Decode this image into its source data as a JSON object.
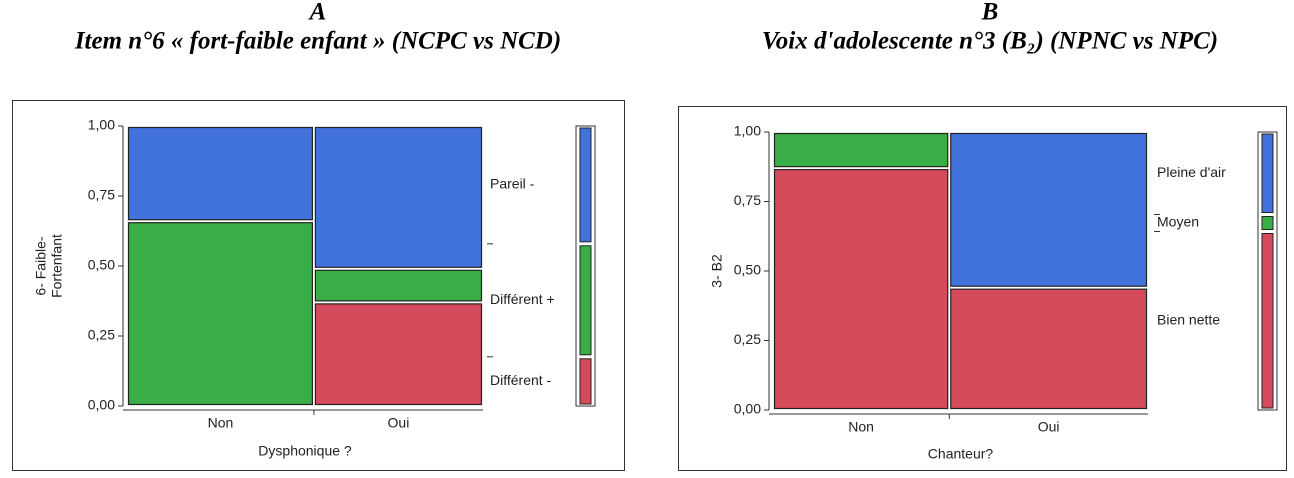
{
  "chart_data": [
    {
      "type": "mosaic",
      "letter": "A",
      "title": "Item n°6 « fort-faible enfant »   (NCPC vs NCD)",
      "x_label": "Dysphonique ?",
      "y_label": [
        "6- Faible-",
        "Fortenfant"
      ],
      "categories": [
        "Non",
        "Oui"
      ],
      "column_shares": [
        0.525,
        0.475
      ],
      "series": [
        {
          "name": "Différent -",
          "color": "#d54b5b",
          "values": [
            0,
            0.37
          ]
        },
        {
          "name": "Différent +",
          "color": "#3aae46",
          "values": [
            0.66,
            0.12
          ]
        },
        {
          "name": "Pareil -",
          "color": "#4272dc",
          "values": [
            0.34,
            0.51
          ]
        }
      ],
      "ylim": [
        0,
        1
      ],
      "yticks": [
        {
          "value": 0,
          "label": "0,00"
        },
        {
          "value": 0.25,
          "label": "0,25"
        },
        {
          "value": 0.5,
          "label": "0,50"
        },
        {
          "value": 0.75,
          "label": "0,75"
        },
        {
          "value": 1,
          "label": "1,00"
        }
      ]
    },
    {
      "type": "mosaic",
      "letter": "B",
      "title": "Voix d'adolescente n°3 (B₂)   (NPNC vs NPC)",
      "x_label": "Chanteur?",
      "y_label": [
        "3- B2"
      ],
      "categories": [
        "Non",
        "Oui"
      ],
      "column_shares": [
        0.47,
        0.53
      ],
      "series": [
        {
          "name": "Bien nette",
          "color": "#d54b5b",
          "values": [
            0.87,
            0.44
          ]
        },
        {
          "name": "Moyen",
          "color": "#3aae46",
          "values": [
            0.13,
            0
          ]
        },
        {
          "name": "Pleine d'air",
          "color": "#4272dc",
          "values": [
            0,
            0.56
          ]
        }
      ],
      "ylim": [
        0,
        1
      ],
      "yticks": [
        {
          "value": 0,
          "label": "0,00"
        },
        {
          "value": 0.25,
          "label": "0,25"
        },
        {
          "value": 0.5,
          "label": "0,50"
        },
        {
          "value": 0.75,
          "label": "0,75"
        },
        {
          "value": 1,
          "label": "1,00"
        }
      ]
    }
  ]
}
